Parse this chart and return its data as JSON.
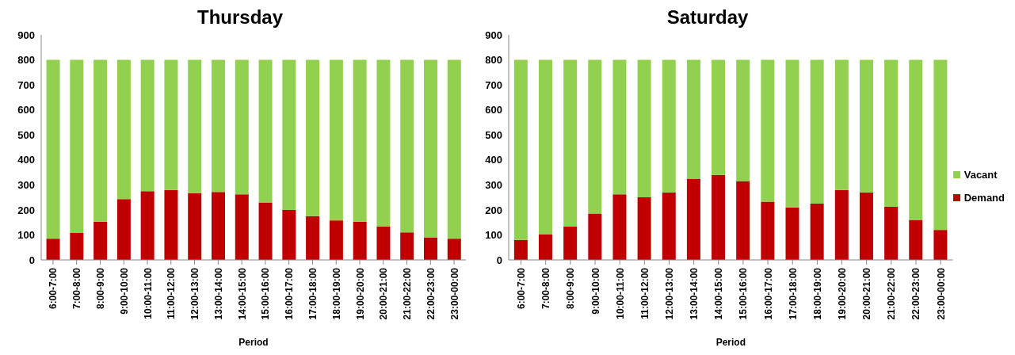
{
  "chart_data": [
    {
      "type": "bar",
      "title": "Thursday",
      "xlabel": "Period",
      "stacked": true,
      "legend": false,
      "categories": [
        "6:00-7:00",
        "7:00-8:00",
        "8:00-9:00",
        "9:00-10:00",
        "10:00-11:00",
        "11:00-12:00",
        "12:00-13:00",
        "13:00-14:00",
        "14:00-15:00",
        "15:00-16:00",
        "16:00-17:00",
        "17:00-18:00",
        "18:00-19:00",
        "19:00-20:00",
        "20:00-21:00",
        "21:00-22:00",
        "22:00-23:00",
        "23:00-00:00"
      ],
      "series": [
        {
          "color": "#c00000",
          "values": [
            85,
            108,
            153,
            243,
            275,
            280,
            267,
            272,
            262,
            230,
            200,
            175,
            158,
            153,
            133,
            110,
            90,
            85
          ]
        },
        {
          "color": "#92d050",
          "values": [
            715,
            692,
            647,
            557,
            525,
            520,
            533,
            528,
            538,
            570,
            600,
            625,
            642,
            647,
            667,
            690,
            710,
            715
          ]
        }
      ],
      "ylim": [
        0,
        900
      ],
      "yticks": [
        0,
        100,
        200,
        300,
        400,
        500,
        600,
        700,
        800,
        900
      ],
      "grid": false
    },
    {
      "type": "bar",
      "title": "Saturday",
      "xlabel": "Period",
      "stacked": true,
      "legend": "right",
      "categories": [
        "6:00-7:00",
        "7:00-8:00",
        "8:00-9:00",
        "9:00-10:00",
        "10:00-11:00",
        "11:00-12:00",
        "12:00-13:00",
        "13:00-14:00",
        "14:00-15:00",
        "15:00-16:00",
        "16:00-17:00",
        "17:00-18:00",
        "18:00-19:00",
        "19:00-20:00",
        "20:00-21:00",
        "21:00-22:00",
        "22:00-23:00",
        "23:00-00:00"
      ],
      "series": [
        {
          "name": "Demand",
          "color": "#c00000",
          "values": [
            80,
            103,
            133,
            185,
            262,
            250,
            270,
            325,
            340,
            315,
            233,
            210,
            225,
            280,
            270,
            212,
            160,
            120
          ]
        },
        {
          "name": "Vacant",
          "color": "#92d050",
          "values": [
            720,
            697,
            667,
            615,
            538,
            550,
            530,
            475,
            460,
            485,
            567,
            590,
            575,
            520,
            530,
            588,
            640,
            680
          ]
        }
      ],
      "ylim": [
        0,
        900
      ],
      "yticks": [
        0,
        100,
        200,
        300,
        400,
        500,
        600,
        700,
        800,
        900
      ],
      "grid": false
    }
  ]
}
